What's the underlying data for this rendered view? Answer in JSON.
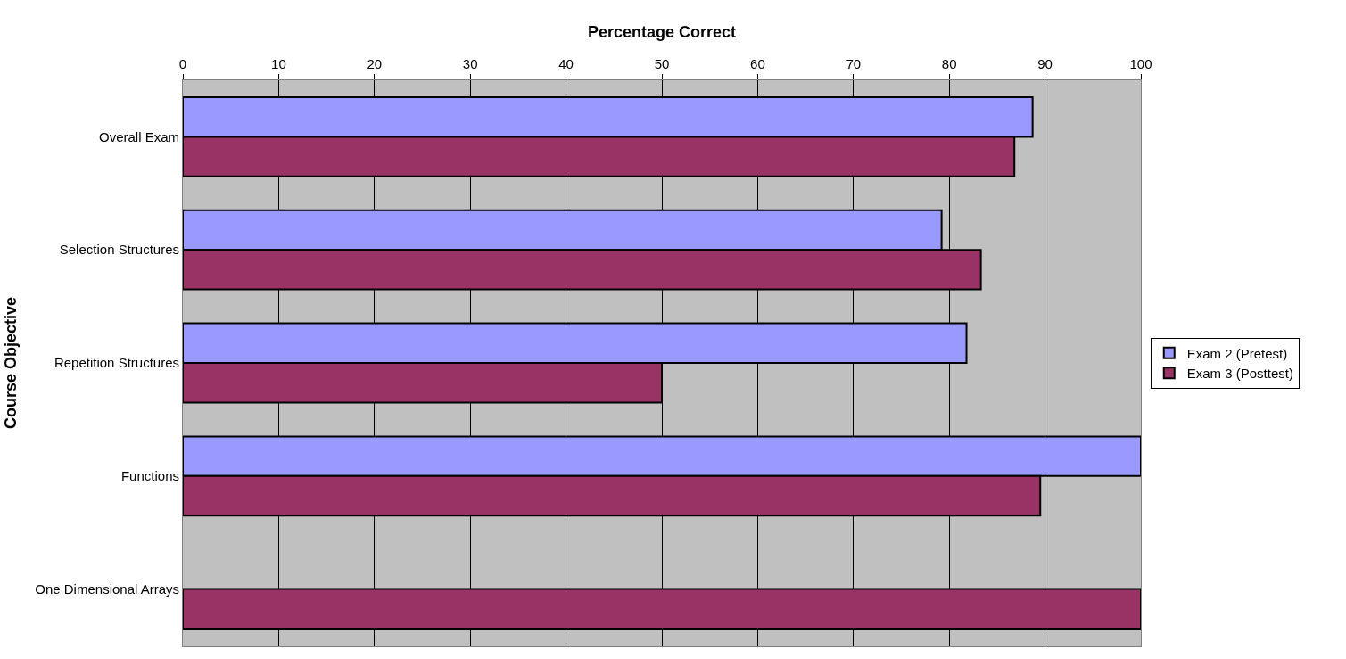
{
  "chart_data": {
    "type": "bar",
    "orientation": "horizontal",
    "xlabel": "Percentage Correct",
    "ylabel": "Course Objective",
    "categories": [
      "Overall Exam",
      "Selection Structures",
      "Repetition Structures",
      "Functions",
      "One Dimensional Arrays"
    ],
    "series": [
      {
        "name": "Exam 2 (Pretest)",
        "color": "#9999ff",
        "values": [
          88.7,
          79.2,
          81.8,
          100,
          null
        ]
      },
      {
        "name": "Exam 3 (Posttest)",
        "color": "#993366",
        "values": [
          86.8,
          83.3,
          50,
          89.5,
          100
        ]
      }
    ],
    "xlim": [
      0,
      100
    ],
    "xticks": [
      0,
      10,
      20,
      30,
      40,
      50,
      60,
      70,
      80,
      90,
      100
    ],
    "grid": "x",
    "legend": "right"
  }
}
